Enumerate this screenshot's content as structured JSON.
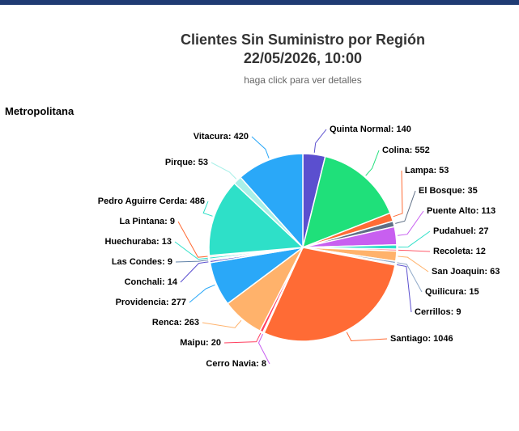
{
  "page": {
    "section": "Metropolitana"
  },
  "chart_data": {
    "type": "pie",
    "title": [
      "Clientes Sin Suministro por Región",
      "22/05/2026, 10:00"
    ],
    "subtitle": "haga click para ver detalles",
    "values": [
      140,
      552,
      53,
      35,
      113,
      27,
      12,
      63,
      15,
      9,
      1046,
      8,
      20,
      263,
      277,
      14,
      9,
      13,
      9,
      486,
      53,
      420
    ],
    "value_labels": [
      "Quinta Normal: 140",
      "Colina: 552",
      "Lampa: 53",
      "El Bosque: 35",
      "Puente Alto: 113",
      "Pudahuel: 27",
      "Recoleta: 12",
      "San Joaquin: 63",
      "Quilicura: 15",
      "Cerrillos: 9",
      "Santiago: 1046",
      "Cerro Navia: 8",
      "Maipu: 20",
      "Renca: 263",
      "Providencia: 277",
      "Conchali: 14",
      "Las Condes: 9",
      "Huechuraba: 13",
      "La Pintana: 9",
      "Pedro Aguirre Cerda: 486",
      "Pirque: 53",
      "Vitacura: 420"
    ],
    "colors": [
      "#5b4fcf",
      "#1fe07a",
      "#ff6b35",
      "#5f6f86",
      "#c85ff0",
      "#2ee0c8",
      "#ff5a6a",
      "#ffb26b",
      "#8fa8c8",
      "#5b4fcf",
      "#ff6b35",
      "#c85ff0",
      "#ff4060",
      "#ffb26b",
      "#2aa8f8",
      "#5b4fcf",
      "#6082a8",
      "#2ee0c8",
      "#ff6b35",
      "#2ee0c8",
      "#a8f0e8",
      "#2aa8f8"
    ]
  }
}
